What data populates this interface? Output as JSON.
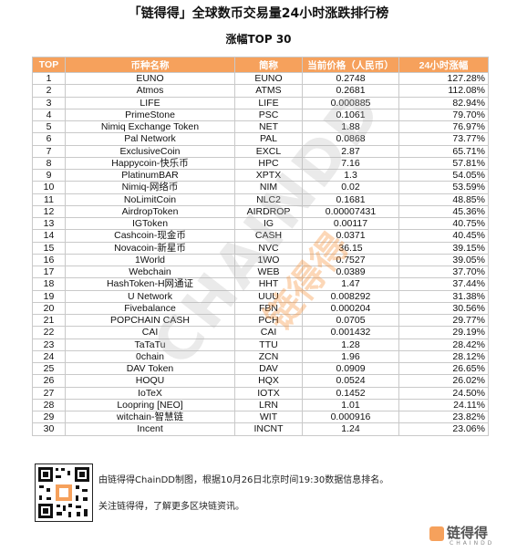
{
  "header": {
    "title": "「链得得」全球数币交易量24小时涨跌排行榜",
    "subtitle": "涨幅TOP 30"
  },
  "table": {
    "columns": [
      "TOP",
      "币种名称",
      "简称",
      "当前价格（人民币）",
      "24小时涨幅"
    ],
    "rows": [
      [
        "1",
        "EUNO",
        "EUNO",
        "0.2748",
        "127.28%"
      ],
      [
        "2",
        "Atmos",
        "ATMS",
        "0.2681",
        "112.08%"
      ],
      [
        "3",
        "LIFE",
        "LIFE",
        "0.000885",
        "82.94%"
      ],
      [
        "4",
        "PrimeStone",
        "PSC",
        "0.1061",
        "79.70%"
      ],
      [
        "5",
        "Nimiq Exchange Token",
        "NET",
        "1.88",
        "76.97%"
      ],
      [
        "6",
        "Pal Network",
        "PAL",
        "0.0868",
        "73.77%"
      ],
      [
        "7",
        "ExclusiveCoin",
        "EXCL",
        "2.87",
        "65.71%"
      ],
      [
        "8",
        "Happycoin-快乐币",
        "HPC",
        "7.16",
        "57.81%"
      ],
      [
        "9",
        "PlatinumBAR",
        "XPTX",
        "1.3",
        "54.05%"
      ],
      [
        "10",
        "Nimiq-网络币",
        "NIM",
        "0.02",
        "53.59%"
      ],
      [
        "11",
        "NoLimitCoin",
        "NLC2",
        "0.1681",
        "48.85%"
      ],
      [
        "12",
        "AirdropToken",
        "AIRDROP",
        "0.00007431",
        "45.36%"
      ],
      [
        "13",
        "IGToken",
        "IG",
        "0.00117",
        "40.75%"
      ],
      [
        "14",
        "Cashcoin-现金币",
        "CASH",
        "0.0371",
        "40.45%"
      ],
      [
        "15",
        "Novacoin-新星币",
        "NVC",
        "36.15",
        "39.15%"
      ],
      [
        "16",
        "1World",
        "1WO",
        "0.7527",
        "39.05%"
      ],
      [
        "17",
        "Webchain",
        "WEB",
        "0.0389",
        "37.70%"
      ],
      [
        "18",
        "HashToken-H网通证",
        "HHT",
        "1.47",
        "37.44%"
      ],
      [
        "19",
        "U Network",
        "UUU",
        "0.008292",
        "31.38%"
      ],
      [
        "20",
        "Fivebalance",
        "FBN",
        "0.000204",
        "30.56%"
      ],
      [
        "21",
        "POPCHAIN CASH",
        "PCH",
        "0.0705",
        "29.77%"
      ],
      [
        "22",
        "CAI",
        "CAI",
        "0.001432",
        "29.19%"
      ],
      [
        "23",
        "TaTaTu",
        "TTU",
        "1.28",
        "28.42%"
      ],
      [
        "24",
        "0chain",
        "ZCN",
        "1.96",
        "28.12%"
      ],
      [
        "25",
        "DAV Token",
        "DAV",
        "0.0909",
        "26.65%"
      ],
      [
        "26",
        "HOQU",
        "HQX",
        "0.0524",
        "26.02%"
      ],
      [
        "27",
        "IoTeX",
        "IOTX",
        "0.1452",
        "24.50%"
      ],
      [
        "28",
        "Loopring [NEO]",
        "LRN",
        "1.01",
        "24.11%"
      ],
      [
        "29",
        "witchain-智慧链",
        "WIT",
        "0.000916",
        "23.82%"
      ],
      [
        "30",
        "Incent",
        "INCNT",
        "1.24",
        "23.06%"
      ]
    ]
  },
  "watermark": {
    "en": "CHAINDD",
    "cn": "链得得"
  },
  "footer": {
    "line1": "由链得得ChainDD制图，根据10月26日北京时间19:30数据信息排名。",
    "line2": "关注链得得，了解更多区块链资讯。",
    "qr_icon": "qr-code-icon"
  },
  "logo": {
    "cn": "链得得",
    "en": "CHAINDD"
  },
  "colors": {
    "header_bg": "#f6a15c",
    "border": "#c9c9c9",
    "watermark_accent": "#f68c32"
  }
}
